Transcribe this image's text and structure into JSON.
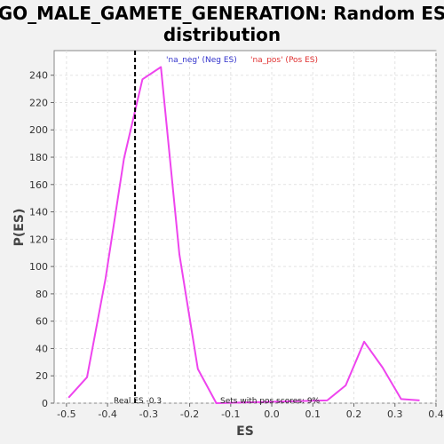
{
  "chart_data": {
    "type": "line",
    "title_line1": "GO_MALE_GAMETE_GENERATION: Random ES",
    "title_line2": "distribution",
    "xlabel": "ES",
    "ylabel": "P(ES)",
    "xlim": [
      -0.53,
      0.4
    ],
    "ylim": [
      0,
      258
    ],
    "x_ticks": [
      -0.5,
      -0.4,
      -0.3,
      -0.2,
      -0.1,
      0.0,
      0.1,
      0.2,
      0.3,
      0.4
    ],
    "x_tick_labels": [
      "-0.5",
      "-0.4",
      "-0.3",
      "-0.2",
      "-0.1",
      "0.0",
      "0.1",
      "0.2",
      "0.3",
      "0.4"
    ],
    "y_ticks": [
      0,
      20,
      40,
      60,
      80,
      100,
      120,
      140,
      160,
      180,
      200,
      220,
      240
    ],
    "y_tick_labels": [
      "0",
      "20",
      "40",
      "60",
      "80",
      "100",
      "120",
      "140",
      "160",
      "180",
      "200",
      "220",
      "240"
    ],
    "grid": true,
    "legend": [
      {
        "label": "'na_neg' (Neg ES)",
        "color": "#3333cc"
      },
      {
        "label": "'na_pos' (Pos ES)",
        "color": "#e03030"
      }
    ],
    "legend_position": "top-center",
    "series": [
      {
        "color": "#ee44ee",
        "x": [
          -0.495,
          -0.45,
          -0.405,
          -0.36,
          -0.315,
          -0.27,
          -0.225,
          -0.18,
          -0.135,
          0.135,
          0.18,
          0.225,
          0.27,
          0.315,
          0.36
        ],
        "y": [
          4,
          19,
          91,
          179,
          237,
          246,
          109,
          25,
          0,
          2,
          13,
          45,
          26,
          3,
          2
        ]
      }
    ],
    "real_es_x": -0.333,
    "real_es_label": "Real ES -0.3",
    "pos_scores_label": "Sets with pos scores: 9%"
  }
}
